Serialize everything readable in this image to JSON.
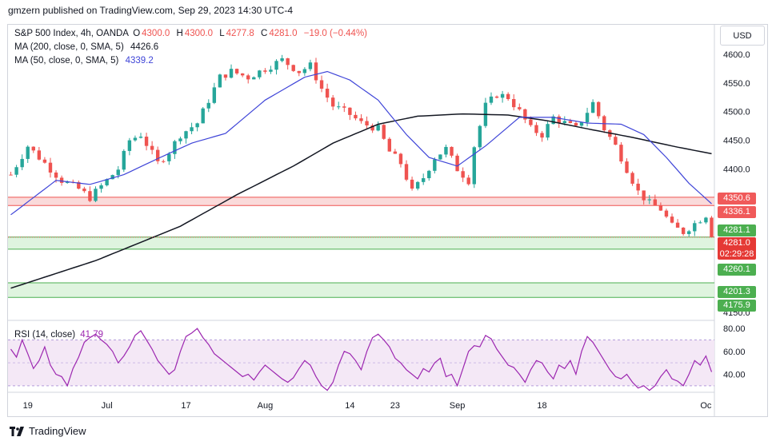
{
  "header": {
    "published": "gmzern published on TradingView.com, Sep 29, 2023 14:30 UTC-4"
  },
  "legend": {
    "symbol": "S&P 500 Index, 4h, OANDA",
    "o_label": "O",
    "o_value": "4300.0",
    "h_label": "H",
    "h_value": "4300.0",
    "l_label": "L",
    "l_value": "4277.8",
    "c_label": "C",
    "c_value": "4281.0",
    "change": "−19.0 (−0.44%)",
    "ma200_label": "MA (200, close, 0, SMA, 5)",
    "ma200_value": "4426.6",
    "ma50_label": "MA (50, close, 0, SMA, 5)",
    "ma50_value": "4339.2",
    "rsi_label": "RSI (14, close)",
    "rsi_value": "41.79"
  },
  "currency": "USD",
  "footer": {
    "brand": "TradingView"
  },
  "colors": {
    "up": "#26a69a",
    "down": "#ef5350",
    "ma200": "#131722",
    "ma50": "#3f45d8",
    "rsi": "#9c27b0",
    "resistance_zone": "#f9d3d3",
    "support_zone": "#d9f2d9",
    "tag_red": "#f05a5a",
    "tag_green": "#4caf50"
  },
  "chart_data": {
    "type": "candlestick",
    "price_axis": {
      "ylim": [
        4140,
        4625
      ],
      "ticks": [
        4150.0,
        4200.0,
        4250.0,
        4300.0,
        4350.0,
        4400.0,
        4450.0,
        4500.0,
        4550.0,
        4600.0
      ],
      "tick_labels": [
        "4150.0",
        "4400.0",
        "4450.0",
        "4500.0",
        "4550.0",
        "4600.0"
      ]
    },
    "time_axis": {
      "labels": [
        "19",
        "Jul",
        "17",
        "Aug",
        "14",
        "23",
        "Sep",
        "18",
        "Oc"
      ]
    },
    "price_path": [
      [
        0,
        4390
      ],
      [
        3,
        4440
      ],
      [
        6,
        4410
      ],
      [
        9,
        4380
      ],
      [
        12,
        4365
      ],
      [
        14,
        4350
      ],
      [
        17,
        4380
      ],
      [
        19,
        4400
      ],
      [
        21,
        4450
      ],
      [
        23,
        4460
      ],
      [
        26,
        4410
      ],
      [
        28,
        4430
      ],
      [
        30,
        4460
      ],
      [
        33,
        4480
      ],
      [
        35,
        4520
      ],
      [
        37,
        4560
      ],
      [
        39,
        4570
      ],
      [
        42,
        4560
      ],
      [
        45,
        4575
      ],
      [
        48,
        4590
      ],
      [
        51,
        4570
      ],
      [
        53,
        4580
      ],
      [
        55,
        4540
      ],
      [
        57,
        4510
      ],
      [
        60,
        4495
      ],
      [
        62,
        4480
      ],
      [
        65,
        4470
      ],
      [
        67,
        4430
      ],
      [
        69,
        4410
      ],
      [
        71,
        4360
      ],
      [
        73,
        4385
      ],
      [
        75,
        4420
      ],
      [
        77,
        4435
      ],
      [
        79,
        4400
      ],
      [
        81,
        4380
      ],
      [
        82,
        4440
      ],
      [
        84,
        4510
      ],
      [
        86,
        4530
      ],
      [
        88,
        4525
      ],
      [
        90,
        4500
      ],
      [
        92,
        4470
      ],
      [
        94,
        4460
      ],
      [
        96,
        4490
      ],
      [
        98,
        4480
      ],
      [
        100,
        4470
      ],
      [
        102,
        4500
      ],
      [
        103,
        4515
      ],
      [
        105,
        4470
      ],
      [
        107,
        4440
      ],
      [
        109,
        4400
      ],
      [
        111,
        4360
      ],
      [
        113,
        4340
      ],
      [
        115,
        4330
      ],
      [
        117,
        4300
      ],
      [
        119,
        4290
      ],
      [
        121,
        4305
      ],
      [
        123,
        4320
      ],
      [
        124,
        4281
      ]
    ],
    "ma200_path": [
      [
        0,
        4192
      ],
      [
        15,
        4240
      ],
      [
        30,
        4300
      ],
      [
        40,
        4355
      ],
      [
        50,
        4405
      ],
      [
        57,
        4445
      ],
      [
        65,
        4478
      ],
      [
        72,
        4492
      ],
      [
        80,
        4496
      ],
      [
        88,
        4494
      ],
      [
        95,
        4484
      ],
      [
        102,
        4470
      ],
      [
        110,
        4455
      ],
      [
        118,
        4438
      ],
      [
        124,
        4426.6
      ]
    ],
    "ma50_path": [
      [
        0,
        4320
      ],
      [
        8,
        4380
      ],
      [
        14,
        4373
      ],
      [
        20,
        4390
      ],
      [
        26,
        4418
      ],
      [
        32,
        4445
      ],
      [
        38,
        4462
      ],
      [
        45,
        4520
      ],
      [
        52,
        4560
      ],
      [
        56,
        4570
      ],
      [
        60,
        4555
      ],
      [
        65,
        4520
      ],
      [
        70,
        4460
      ],
      [
        74,
        4420
      ],
      [
        79,
        4405
      ],
      [
        84,
        4440
      ],
      [
        90,
        4490
      ],
      [
        96,
        4490
      ],
      [
        102,
        4480
      ],
      [
        108,
        4478
      ],
      [
        112,
        4460
      ],
      [
        116,
        4420
      ],
      [
        120,
        4375
      ],
      [
        124,
        4339.2
      ]
    ],
    "zones": [
      {
        "type": "resistance",
        "from": 4336.1,
        "to": 4350.6,
        "label_from": "4336.1",
        "label_to": "4350.6"
      },
      {
        "type": "support",
        "from": 4260.1,
        "to": 4281.1,
        "label_from": "4260.1",
        "label_to": "4281.1"
      },
      {
        "type": "support",
        "from": 4175.9,
        "to": 4201.3,
        "label_from": "4175.9",
        "label_to": "4201.3"
      }
    ],
    "last_price": {
      "value": "4281.0",
      "countdown": "02:29:28"
    },
    "rsi": {
      "ylim": [
        25,
        85
      ],
      "tick_labels": [
        "80.00",
        "60.00",
        "40.00"
      ],
      "ticks": [
        80,
        60,
        40
      ],
      "band": [
        30,
        70
      ],
      "last": 41.79,
      "values": [
        62,
        55,
        70,
        58,
        45,
        52,
        64,
        48,
        40,
        38,
        30,
        45,
        55,
        68,
        72,
        75,
        70,
        66,
        60,
        50,
        56,
        64,
        74,
        78,
        70,
        62,
        52,
        46,
        40,
        44,
        60,
        73,
        76,
        80,
        72,
        66,
        58,
        54,
        50,
        46,
        42,
        38,
        40,
        35,
        42,
        48,
        44,
        40,
        36,
        33,
        37,
        45,
        52,
        48,
        38,
        30,
        26,
        33,
        48,
        60,
        58,
        52,
        44,
        60,
        72,
        75,
        70,
        64,
        54,
        50,
        44,
        40,
        36,
        45,
        42,
        50,
        54,
        38,
        40,
        30,
        45,
        60,
        65,
        64,
        74,
        71,
        62,
        55,
        48,
        46,
        40,
        33,
        44,
        52,
        50,
        42,
        36,
        48,
        45,
        52,
        40,
        60,
        73,
        68,
        60,
        52,
        44,
        38,
        36,
        40,
        33,
        28,
        30,
        26,
        30,
        38,
        44,
        36,
        34,
        30,
        40,
        52,
        48,
        56,
        42
      ]
    }
  }
}
